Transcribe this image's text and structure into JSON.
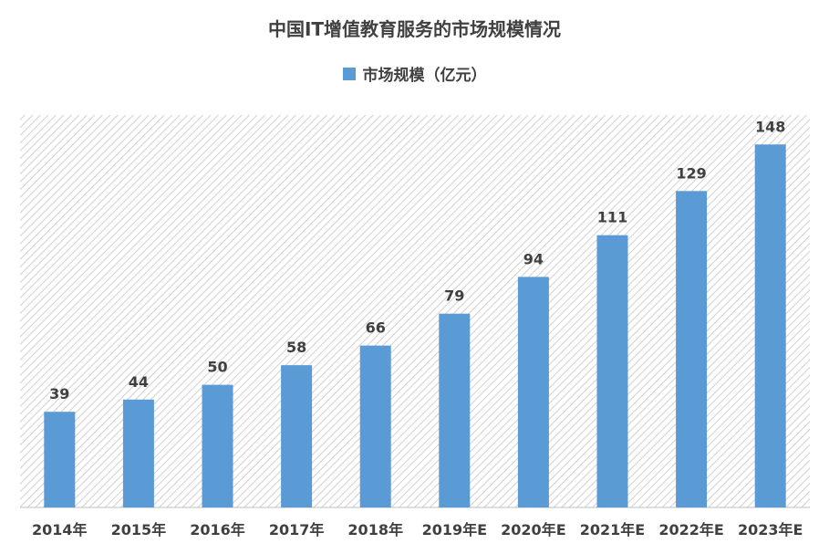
{
  "chart_data": {
    "type": "bar",
    "title": "中国IT增值教育服务的市场规模情况",
    "categories": [
      "2014年",
      "2015年",
      "2016年",
      "2017年",
      "2018年",
      "2019年E",
      "2020年E",
      "2021年E",
      "2022年E",
      "2023年E"
    ],
    "series": [
      {
        "name": "市场规模（亿元）",
        "values": [
          39,
          44,
          50,
          58,
          66,
          79,
          94,
          111,
          129,
          148
        ]
      }
    ],
    "ylim": [
      0,
      160
    ],
    "grid": false,
    "legend": "top",
    "colors": {
      "bar": "#5b9bd5",
      "text": "#404040",
      "hatch": "#d0d0d0"
    }
  }
}
